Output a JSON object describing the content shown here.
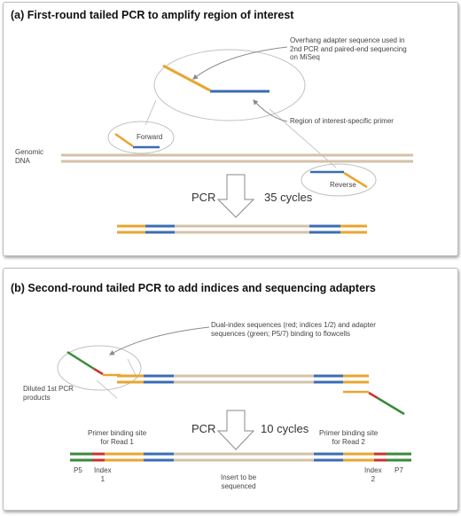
{
  "panel_a": {
    "title": "(a) First-round tailed PCR to amplify region of interest",
    "overhang_note": [
      "Overhang adapter sequence used in",
      "2nd PCR and paired-end sequencing",
      "on MiSeq"
    ],
    "primer_note": "Region of interest-specific primer",
    "forward_label": "Forward",
    "reverse_label": "Reverse",
    "genomic_label": [
      "Genomic",
      "DNA"
    ],
    "pcr_label": "PCR",
    "cycles_label": "35 cycles"
  },
  "panel_b": {
    "title": "(b) Second-round tailed PCR to add indices and sequencing adapters",
    "index_note": [
      "Dual-index sequences (red; indices 1/2) and adapter",
      "sequences (green; P5/7) binding to flowcells"
    ],
    "diluted_label": [
      "Diluted 1st PCR",
      "products"
    ],
    "pcr_label": "PCR",
    "cycles_label": "10 cycles",
    "primer_read1": [
      "Primer binding site",
      "for Read 1"
    ],
    "primer_read2": [
      "Primer binding site",
      "for Read 2"
    ],
    "p5_label": "P5",
    "index1_label": [
      "Index",
      "1"
    ],
    "insert_label": [
      "Insert to be",
      "sequenced"
    ],
    "index2_label": [
      "Index",
      "2"
    ],
    "p7_label": "P7"
  },
  "colors": {
    "overhang": "#e8a530",
    "primer": "#3b6cb5",
    "genomic": "#d3c2a8",
    "index": "#c8342f",
    "adapter": "#3a8a3a",
    "callout_arrow": "#8a8a8a"
  }
}
